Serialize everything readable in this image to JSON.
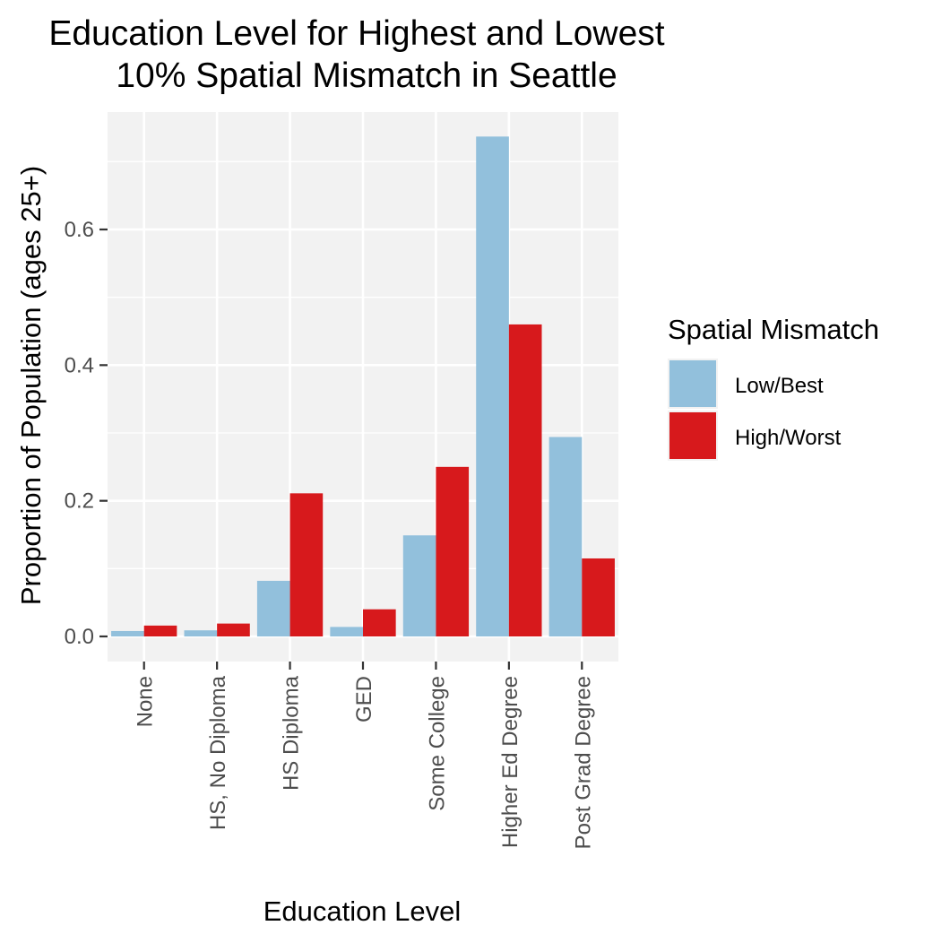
{
  "chart_data": {
    "type": "bar",
    "title": [
      "Education Level for Highest and Lowest",
      "10% Spatial Mismatch in Seattle"
    ],
    "xlabel": "Education Level",
    "ylabel": "Proportion of Population (ages 25+)",
    "categories": [
      "None",
      "HS, No Diploma",
      "HS Diploma",
      "GED",
      "Some College",
      "Higher Ed Degree",
      "Post Grad Degree"
    ],
    "series": [
      {
        "name": "Low/Best",
        "color": "#92c0dc",
        "values": [
          0.008,
          0.009,
          0.082,
          0.014,
          0.149,
          0.737,
          0.294
        ]
      },
      {
        "name": "High/Worst",
        "color": "#d7191c",
        "values": [
          0.016,
          0.019,
          0.211,
          0.04,
          0.25,
          0.46,
          0.115
        ]
      }
    ],
    "yticks": [
      0.0,
      0.2,
      0.4,
      0.6
    ],
    "ytick_labels": [
      "0.0",
      "0.2",
      "0.4",
      "0.6"
    ],
    "ylim": [
      -0.037,
      0.775
    ],
    "legend": {
      "title": "Spatial Mismatch",
      "position": "right"
    },
    "panel_background": "#f2f2f2",
    "grid": true
  }
}
